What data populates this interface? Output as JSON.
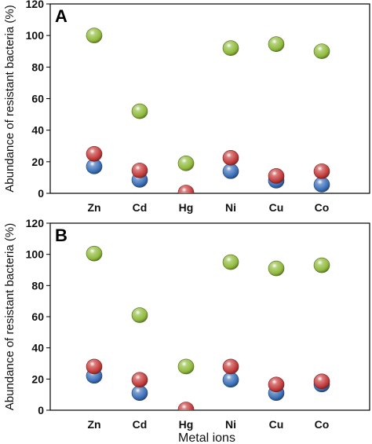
{
  "chart_data": [
    {
      "type": "scatter",
      "panel_label": "A",
      "categories": [
        "Zn",
        "Cd",
        "Hg",
        "Ni",
        "Cu",
        "Co"
      ],
      "ylabel": "Abundance of resistant bacteria (%)",
      "xlabel": "",
      "ylim": [
        0,
        120
      ],
      "yticks": [
        0,
        20,
        40,
        60,
        80,
        100,
        120
      ],
      "grid": false,
      "legend": "none",
      "series": [
        {
          "color": "#8fba3a",
          "values": [
            100,
            52,
            19,
            92,
            94.5,
            90
          ]
        },
        {
          "color": "#c43a3a",
          "values": [
            25,
            14.5,
            0.5,
            22.5,
            11,
            14
          ]
        },
        {
          "color": "#3a6fb8",
          "values": [
            17,
            8.5,
            null,
            14,
            8,
            5.5
          ]
        }
      ]
    },
    {
      "type": "scatter",
      "panel_label": "B",
      "categories": [
        "Zn",
        "Cd",
        "Hg",
        "Ni",
        "Cu",
        "Co"
      ],
      "ylabel": "Abundance of resistant bacteria (%)",
      "xlabel": "Metal ions",
      "ylim": [
        0,
        120
      ],
      "yticks": [
        0,
        20,
        40,
        60,
        80,
        100,
        120
      ],
      "grid": false,
      "legend": "none",
      "series": [
        {
          "color": "#8fba3a",
          "values": [
            100.5,
            61,
            28,
            95,
            91,
            93
          ]
        },
        {
          "color": "#c43a3a",
          "values": [
            28,
            19.5,
            0.5,
            28,
            16.5,
            18.5
          ]
        },
        {
          "color": "#3a6fb8",
          "values": [
            22,
            11,
            null,
            19.5,
            11,
            16.5
          ]
        }
      ]
    }
  ]
}
